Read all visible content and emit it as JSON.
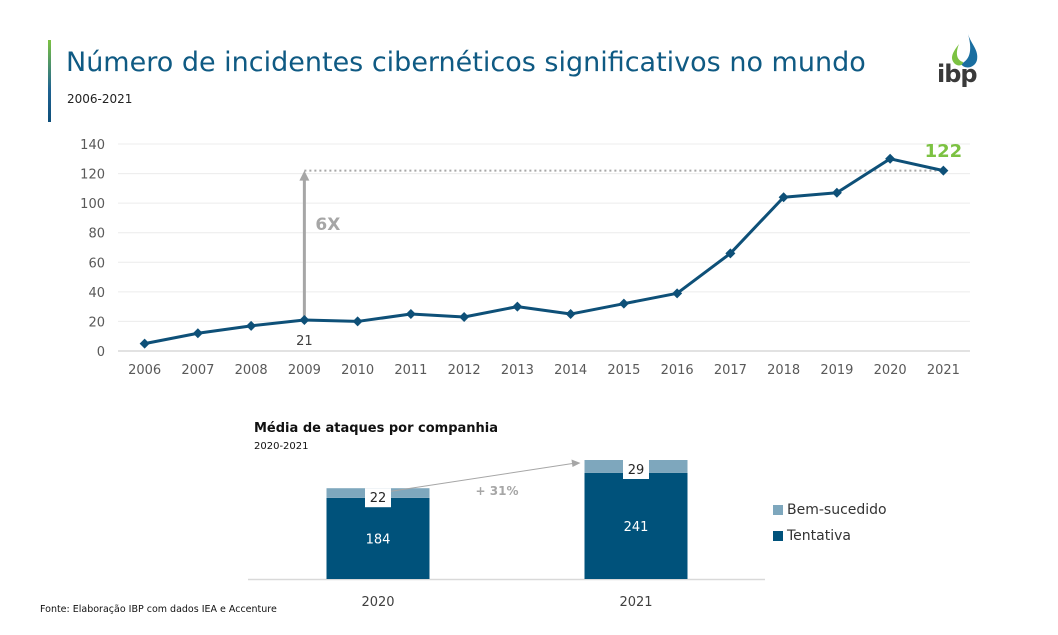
{
  "header": {
    "title": "Número de incidentes cibernéticos significativos no mundo",
    "subtitle": "2006-2021",
    "logo_text": "ibp",
    "logo_icon": "water-drop-icon"
  },
  "colors": {
    "primary": "#0f5a83",
    "line": "#0e5078",
    "highlight_green": "#7cc242",
    "annotation_gray": "#a6a6a6",
    "bar_tentativa": "#00527b",
    "bar_bem_sucedido": "#7ea7bd",
    "grid": "#e6e6e6"
  },
  "chart_data": [
    {
      "type": "line",
      "title": "Número de incidentes cibernéticos significativos no mundo",
      "subtitle": "2006-2021",
      "x": [
        "2006",
        "2007",
        "2008",
        "2009",
        "2010",
        "2011",
        "2012",
        "2013",
        "2014",
        "2015",
        "2016",
        "2017",
        "2018",
        "2019",
        "2020",
        "2021"
      ],
      "series": [
        {
          "name": "Incidentes",
          "values": [
            5,
            12,
            17,
            21,
            20,
            25,
            23,
            30,
            25,
            32,
            39,
            66,
            104,
            107,
            130,
            122
          ]
        }
      ],
      "ylim": [
        0,
        140
      ],
      "yticks": [
        0,
        20,
        40,
        60,
        80,
        100,
        120,
        140
      ],
      "grid": true,
      "data_labels": [
        {
          "x": "2009",
          "value": "21"
        },
        {
          "x": "2021",
          "value": "122"
        }
      ],
      "annotations": [
        {
          "type": "arrow",
          "from_x": "2009",
          "from_y": 21,
          "to_y": 122,
          "label": "6X"
        },
        {
          "type": "dotted-reference",
          "y": 122,
          "from_x": "2009",
          "to_x": "2021"
        }
      ]
    },
    {
      "type": "bar",
      "stacked": true,
      "title": "Média de ataques por companhia",
      "subtitle": "2020-2021",
      "categories": [
        "2020",
        "2021"
      ],
      "series": [
        {
          "name": "Tentativa",
          "values": [
            184,
            241
          ]
        },
        {
          "name": "Bem-sucedido",
          "values": [
            22,
            29
          ]
        }
      ],
      "legend": [
        "Bem-sucedido",
        "Tentativa"
      ],
      "legend_position": "right",
      "annotations": [
        {
          "type": "arrow",
          "from": "2020",
          "to": "2021",
          "label": "+ 31%"
        }
      ]
    }
  ],
  "footer": {
    "source": "Fonte: Elaboração IBP com dados IEA e Accenture"
  }
}
